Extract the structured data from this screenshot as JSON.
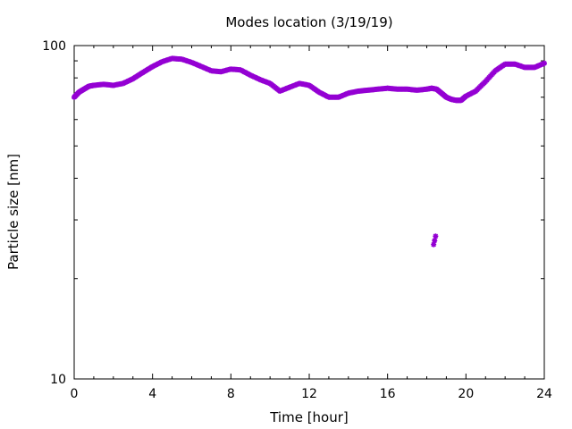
{
  "chart_data": {
    "type": "scatter",
    "title": "Modes location (3/19/19)",
    "xlabel": "Time [hour]",
    "ylabel": "Particle size [nm]",
    "xlim": [
      0,
      24
    ],
    "ylim": [
      10,
      100
    ],
    "yscale": "log",
    "grid": false,
    "x_ticks": [
      0,
      4,
      8,
      12,
      16,
      20,
      24
    ],
    "x_tick_labels": [
      "0",
      "4",
      "8",
      "12",
      "16",
      "20",
      "24"
    ],
    "y_ticks": [
      10,
      100
    ],
    "y_tick_labels": [
      "10",
      "100"
    ],
    "marker_color": "#9400d3",
    "series": [
      {
        "x": [
          0.0,
          0.25,
          0.5,
          0.75,
          1.0,
          1.5,
          2.0,
          2.5,
          3.0,
          3.5,
          4.0,
          4.5,
          5.0,
          5.5,
          6.0,
          6.5,
          7.0,
          7.5,
          8.0,
          8.5,
          9.0,
          9.5,
          10.0,
          10.5,
          11.0,
          11.5,
          12.0,
          12.5,
          13.0,
          13.5,
          14.0,
          14.5,
          15.0,
          15.5,
          16.0,
          16.5,
          17.0,
          17.5,
          18.0,
          18.25,
          18.5,
          18.75,
          19.0,
          19.25,
          19.5,
          19.75,
          20.0,
          20.5,
          21.0,
          21.5,
          22.0,
          22.5,
          23.0,
          23.5,
          24.0,
          18.35,
          18.4,
          18.45
        ],
        "y": [
          70,
          72.5,
          74,
          75.5,
          76,
          76.5,
          76,
          77,
          79.5,
          83,
          86.5,
          89.5,
          91.5,
          91,
          89,
          86.5,
          84,
          83.5,
          85,
          84.5,
          81.5,
          79,
          77,
          73,
          75,
          77,
          76,
          72.5,
          70,
          70,
          72,
          73,
          73.5,
          74,
          74.5,
          74,
          74,
          73.5,
          74,
          74.5,
          74,
          72,
          70,
          69,
          68.5,
          68.5,
          70.5,
          73,
          78,
          84,
          88,
          88,
          86,
          86,
          88.5,
          25.3,
          26.0,
          26.8
        ]
      }
    ]
  }
}
